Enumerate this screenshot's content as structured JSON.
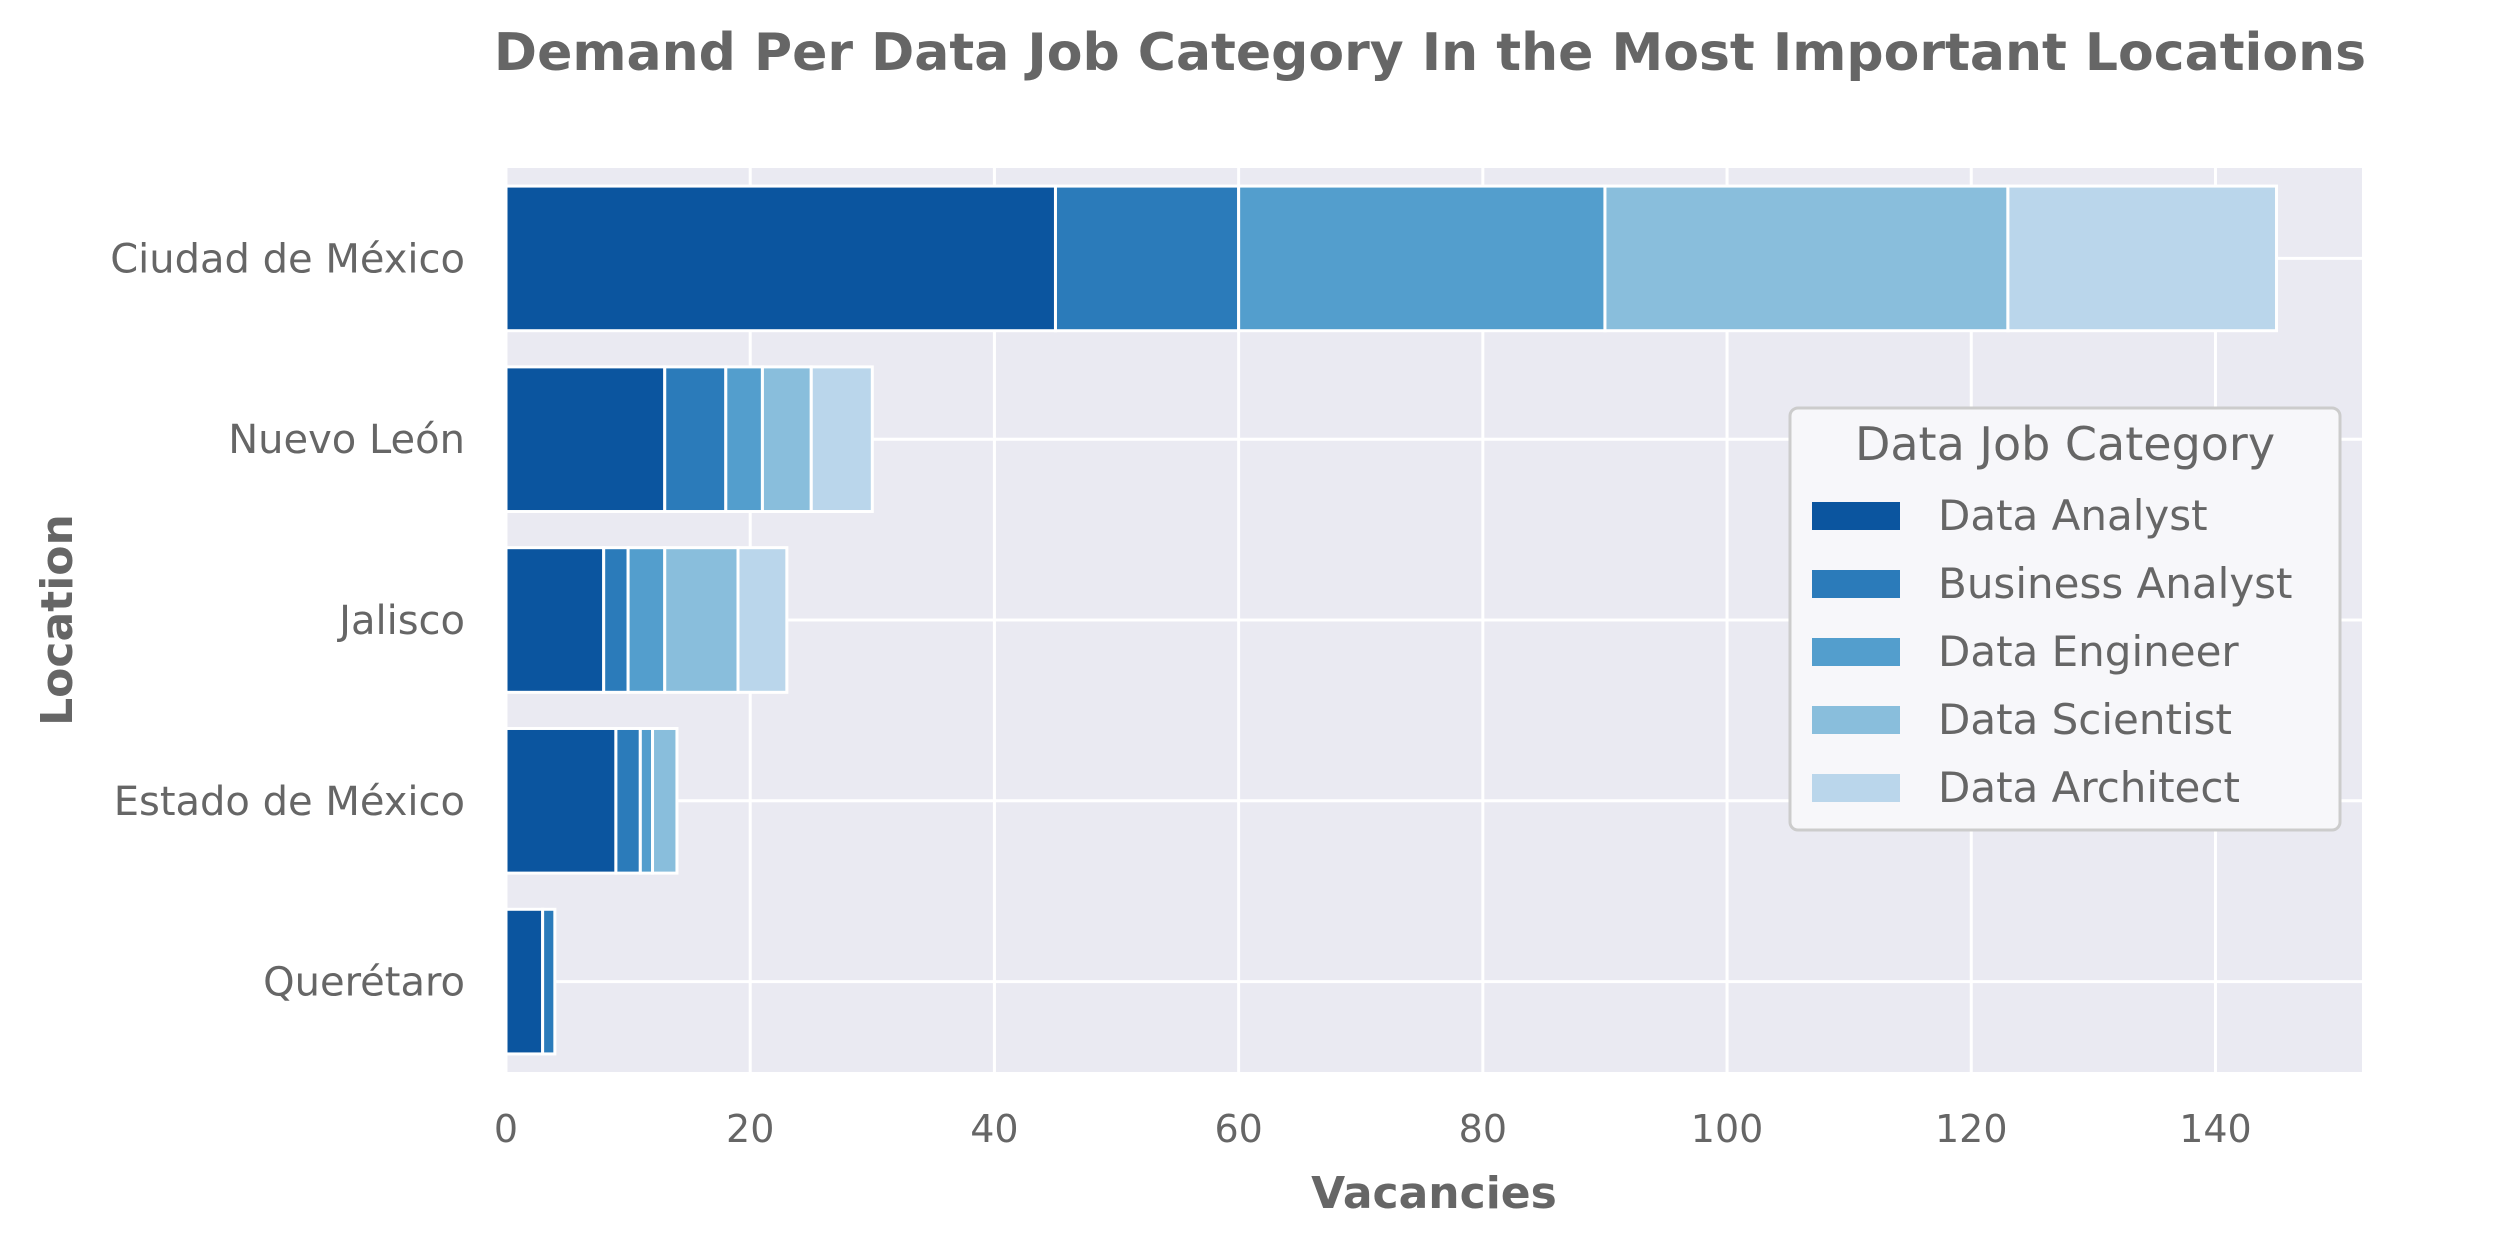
{
  "chart_data": {
    "type": "bar",
    "orientation": "horizontal",
    "stacked": true,
    "title": "Demand Per Data Job Category In the Most Important Locations",
    "xlabel": "Vacancies",
    "ylabel": "Location",
    "categories": [
      "Ciudad de México",
      "Nuevo León",
      "Jalisco",
      "Estado de México",
      "Querétaro"
    ],
    "xlim": [
      0,
      152
    ],
    "xticks": [
      0,
      20,
      40,
      60,
      80,
      100,
      120,
      140
    ],
    "grid": true,
    "legend": {
      "title": "Data Job Category",
      "position": "center-right"
    },
    "series": [
      {
        "name": "Data Analyst",
        "color": "#0b559f",
        "values": [
          45,
          13,
          8,
          9,
          3
        ]
      },
      {
        "name": "Business Analyst",
        "color": "#2b7bba",
        "values": [
          15,
          5,
          2,
          2,
          1
        ]
      },
      {
        "name": "Data Engineer",
        "color": "#539ecd",
        "values": [
          30,
          3,
          3,
          1,
          0
        ]
      },
      {
        "name": "Data Scientist",
        "color": "#89bedc",
        "values": [
          33,
          4,
          6,
          2,
          0
        ]
      },
      {
        "name": "Data Architect",
        "color": "#bad6eb",
        "values": [
          22,
          5,
          4,
          0,
          0
        ]
      }
    ],
    "colors": {
      "plot_background": "#eaeaf2",
      "grid": "#ffffff",
      "text": "#666666"
    }
  }
}
